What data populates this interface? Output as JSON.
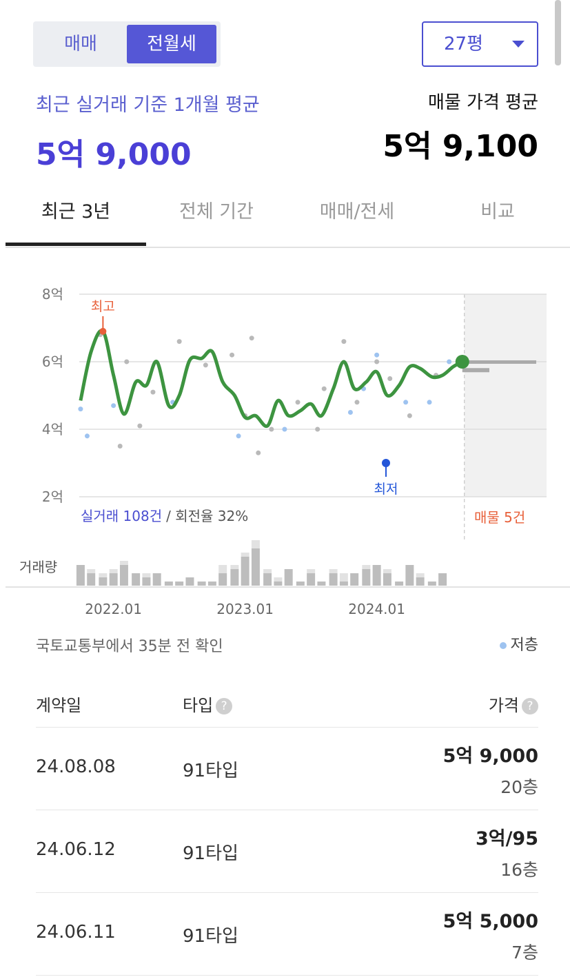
{
  "header": {
    "toggle": [
      "매매",
      "전월세"
    ],
    "active_toggle": "전월세",
    "size_select": "27평",
    "recent_label": "최근 실거래 기준 1개월 평균",
    "recent_price": "5억 9,000",
    "listing_label": "매물 가격 평균",
    "listing_price": "5억 9,100"
  },
  "tabs": [
    "최근 3년",
    "전체 기간",
    "매매/전세",
    "비교"
  ],
  "active_tab": "최근 3년",
  "chart_data": {
    "type": "line",
    "ylim": [
      2,
      8
    ],
    "yticks": [
      {
        "value": 8,
        "label": "8억"
      },
      {
        "value": 6,
        "label": "6억"
      },
      {
        "value": 4,
        "label": "4억"
      },
      {
        "value": 2,
        "label": "2억"
      }
    ],
    "xlim": [
      2021.74,
      2025.29
    ],
    "xticks": [
      {
        "value": 2022,
        "label": "2022.01"
      },
      {
        "value": 2023,
        "label": "2023.01"
      },
      {
        "value": 2024,
        "label": "2024.01"
      }
    ],
    "grid": true,
    "series": [
      {
        "name": "평균",
        "color": "#3d9440",
        "x": [
          2021.75,
          2021.83,
          2021.92,
          2022.0,
          2022.08,
          2022.17,
          2022.25,
          2022.33,
          2022.42,
          2022.5,
          2022.58,
          2022.67,
          2022.75,
          2022.83,
          2022.92,
          2023.0,
          2023.08,
          2023.17,
          2023.25,
          2023.33,
          2023.42,
          2023.5,
          2023.58,
          2023.67,
          2023.75,
          2023.83,
          2023.92,
          2024.0,
          2024.08,
          2024.17,
          2024.25,
          2024.33,
          2024.42,
          2024.5,
          2024.58,
          2024.65
        ],
        "values": [
          4.85,
          6.3,
          6.9,
          5.6,
          4.45,
          5.4,
          5.3,
          6.0,
          4.7,
          5.0,
          6.05,
          6.1,
          6.3,
          5.4,
          5.0,
          4.35,
          4.4,
          4.1,
          4.85,
          4.4,
          4.55,
          4.75,
          4.4,
          5.2,
          6.0,
          5.2,
          5.4,
          5.7,
          5.0,
          5.3,
          5.85,
          5.8,
          5.55,
          5.6,
          5.85,
          6.0
        ]
      }
    ],
    "trades": {
      "name": "실거래",
      "color": "#b9b9b9",
      "x": [
        2021.9,
        2022.1,
        2022.2,
        2022.3,
        2022.5,
        2022.7,
        2022.9,
        2023.0,
        2023.05,
        2023.1,
        2023.2,
        2023.4,
        2023.6,
        2023.75,
        2023.85,
        2024.0,
        2024.1,
        2024.25,
        2024.45,
        2022.05,
        2023.55
      ],
      "values": [
        6.8,
        6.0,
        4.1,
        5.1,
        6.6,
        5.9,
        6.2,
        4.4,
        6.7,
        3.3,
        4.0,
        4.8,
        5.2,
        6.6,
        4.8,
        6.0,
        5.5,
        4.4,
        5.6,
        3.5,
        4.0
      ]
    },
    "low_floor_trades": {
      "name": "저층",
      "color": "#9ec3f0",
      "x": [
        2021.75,
        2021.8,
        2022.0,
        2022.45,
        2022.95,
        2023.3,
        2023.8,
        2023.9,
        2024.0,
        2024.22,
        2024.4,
        2024.55
      ],
      "values": [
        4.6,
        3.8,
        4.7,
        4.8,
        3.8,
        4.0,
        4.5,
        5.2,
        6.2,
        4.8,
        4.8,
        6.0
      ]
    },
    "listing_levels": [
      5.99,
      5.75
    ],
    "high": {
      "label": "최고",
      "x": 2021.92,
      "value": 6.9
    },
    "low": {
      "label": "최저",
      "x": 2024.07,
      "value": 3.0
    },
    "trade_count": "실거래 108건",
    "turnover": "/ 회전율 32%",
    "listing_count": "매물 5건",
    "volume_label": "거래량",
    "volume": {
      "dark": [
        5,
        3,
        2,
        3,
        5,
        3,
        2,
        3,
        1,
        1,
        2,
        1,
        1,
        3,
        4,
        7,
        9,
        3,
        1,
        4,
        1,
        3,
        1,
        3,
        1,
        3,
        4,
        5,
        3,
        1,
        5,
        2,
        1,
        3,
        0,
        0
      ],
      "light": [
        0,
        1,
        1,
        1,
        1,
        0,
        1,
        0,
        0,
        0,
        0,
        0,
        0,
        2,
        1,
        1,
        2,
        1,
        1,
        0,
        0,
        1,
        0,
        1,
        2,
        0,
        1,
        0,
        1,
        0,
        0,
        1,
        0,
        0,
        0,
        0
      ]
    }
  },
  "source_note": "국토교통부에서 35분 전 확인",
  "legend": "저층",
  "table": {
    "headers": [
      "계약일",
      "타입",
      "가격"
    ],
    "rows": [
      [
        "24.08.08",
        "91타입",
        "5억 9,000",
        "20층"
      ],
      [
        "24.06.12",
        "91타입",
        "3억/95",
        "16층"
      ],
      [
        "24.06.11",
        "91타입",
        "5억 5,000",
        "7층"
      ]
    ]
  }
}
